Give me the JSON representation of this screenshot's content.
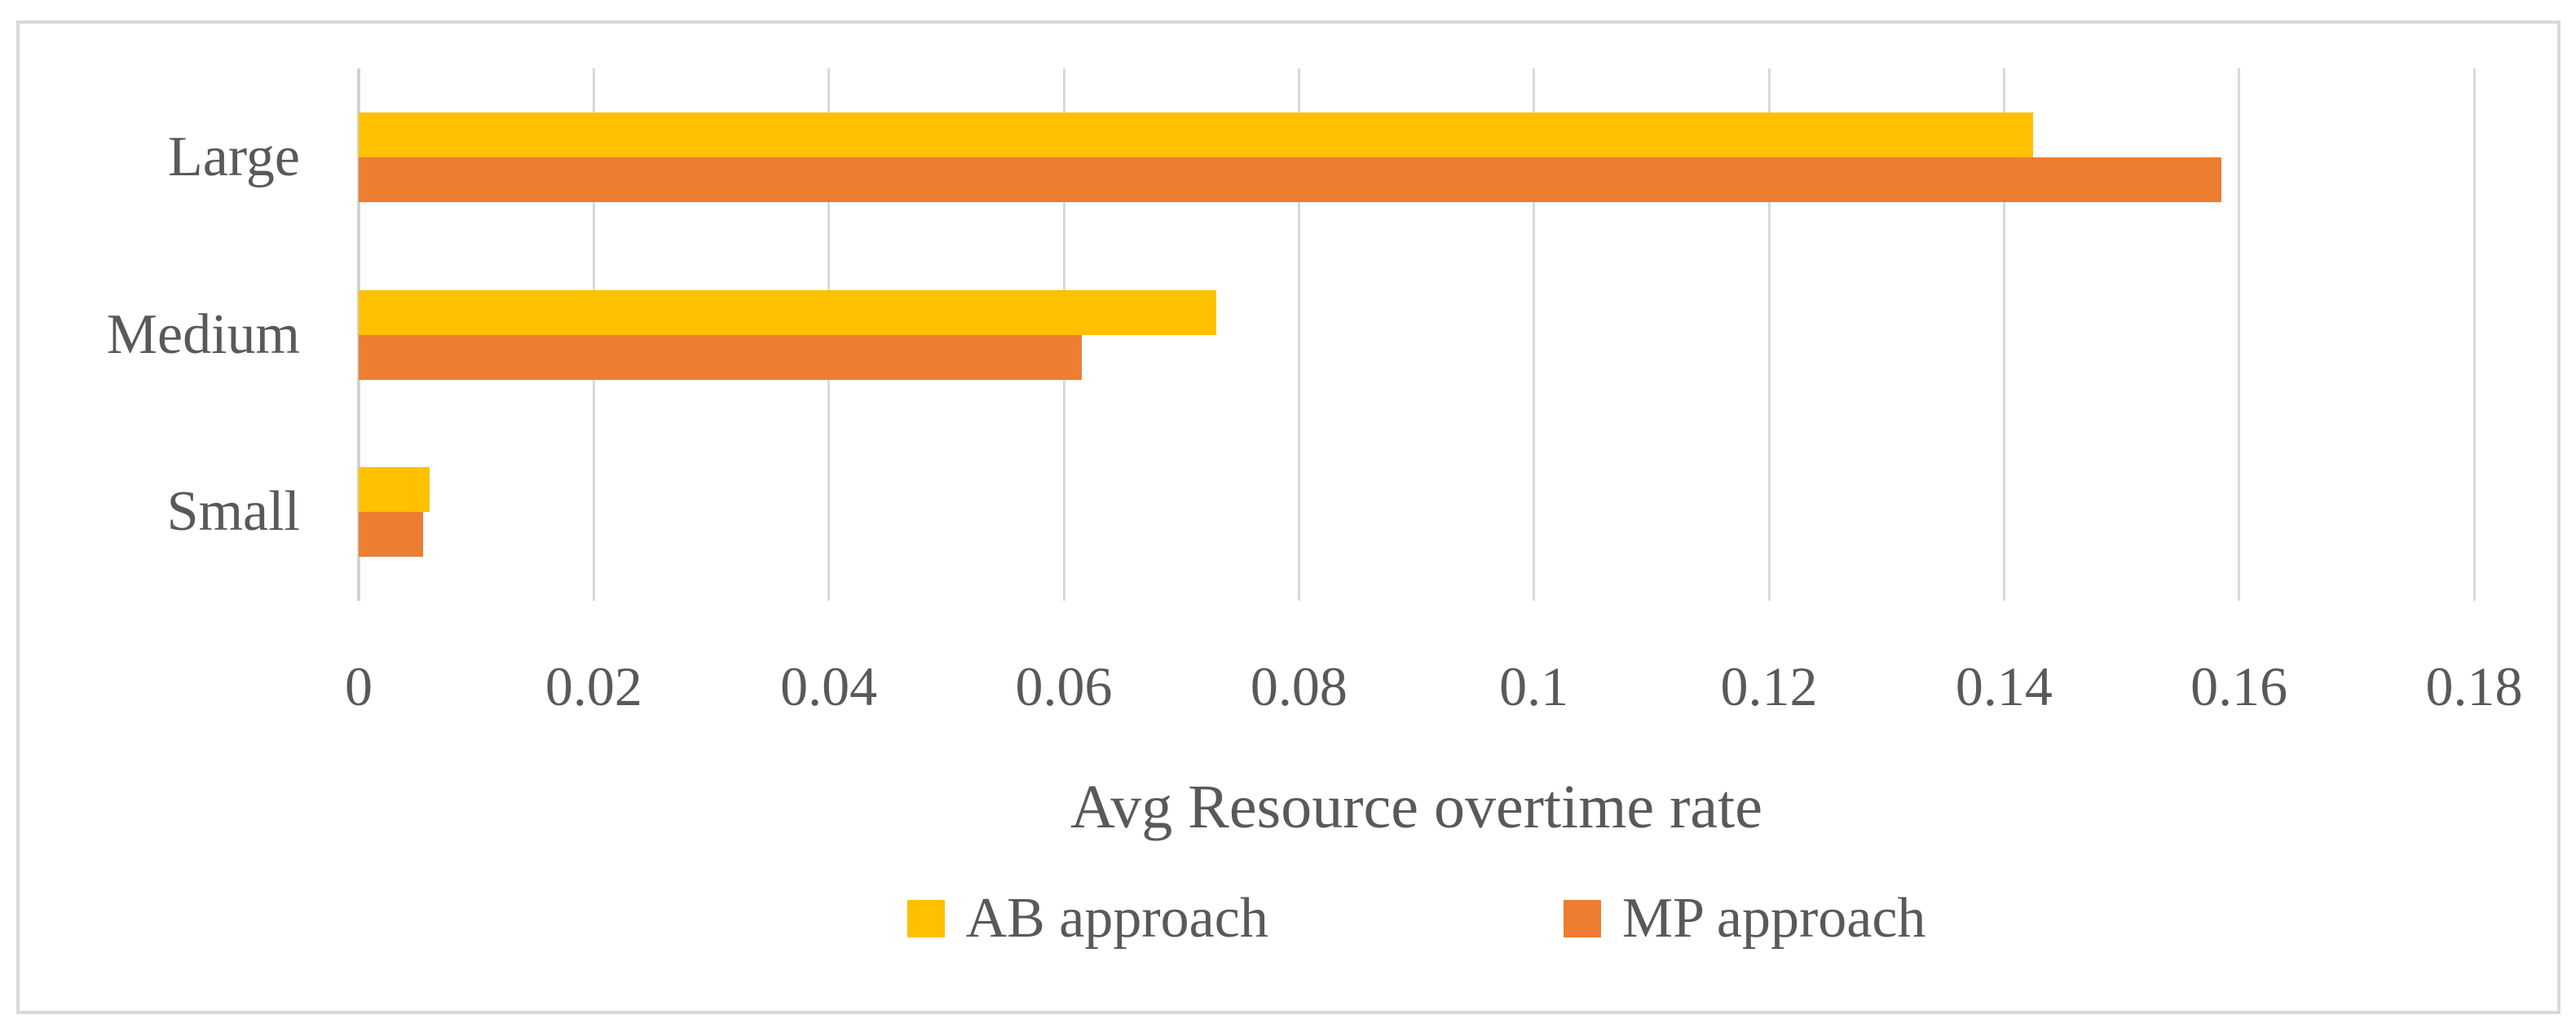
{
  "chart_data": {
    "type": "bar",
    "orientation": "horizontal",
    "title": "",
    "xlabel": "Avg Resource overtime rate",
    "ylabel": "",
    "categories": [
      "Large",
      "Medium",
      "Small"
    ],
    "series": [
      {
        "name": "AB approach",
        "color": "#FFC000",
        "values": [
          0.1425,
          0.073,
          0.006
        ]
      },
      {
        "name": "MP approach",
        "color": "#ED7D31",
        "values": [
          0.1585,
          0.0615,
          0.0055
        ]
      }
    ],
    "xlim": [
      0,
      0.18
    ],
    "xticks": [
      0,
      0.02,
      0.04,
      0.06,
      0.08,
      0.1,
      0.12,
      0.14,
      0.16,
      0.18
    ],
    "xtick_labels": [
      "0",
      "0.02",
      "0.04",
      "0.06",
      "0.08",
      "0.1",
      "0.12",
      "0.14",
      "0.16",
      "0.18"
    ],
    "grid": true,
    "legend_position": "bottom",
    "text_color": "#595959",
    "grid_color": "#D9D9D9",
    "frame_color": "#D9D9D9",
    "background_color": "#FFFFFF"
  }
}
